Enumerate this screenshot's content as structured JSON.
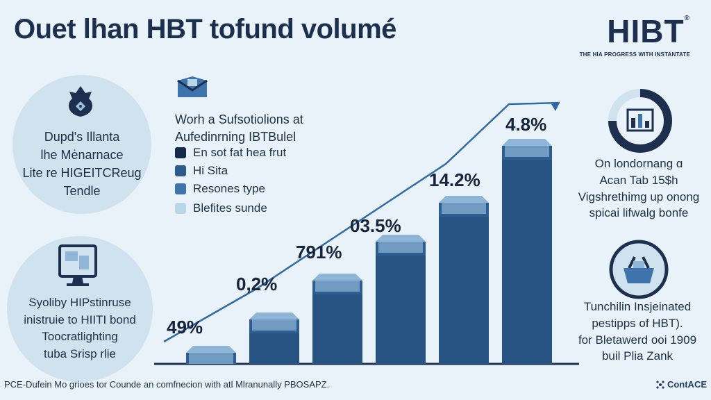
{
  "header": {
    "title": "Ouet lhan HBT tofund volumé",
    "brand_logo": "HIBT",
    "brand_mark": "®",
    "brand_tagline": "THE HIA PROGRESS WITH INSTANTATE"
  },
  "left_panel": {
    "top_circle": {
      "icon": "gem-icon",
      "lines": [
        "Dupd's Illanta",
        "lhe Mėnarnace",
        "Lite re HIGEITCReug",
        "Tendle"
      ]
    },
    "bottom_circle": {
      "icon": "monitor-icon",
      "lines": [
        "Syoliby HIPstinruse",
        "inistruie to HIITI bond",
        "Toocratlighting",
        "tuba Srisp rlie"
      ]
    }
  },
  "legend": {
    "icon": "envelope-icon",
    "heading_lines": [
      "Worh a Sufsotiolions at",
      "Aufedinrning IBTBulel"
    ],
    "items": [
      {
        "label": "En sot fat hea frut",
        "color": "#152a4a"
      },
      {
        "label": "Hi Sita",
        "color": "#2d5b8c"
      },
      {
        "label": "Resones type",
        "color": "#3e74ab"
      },
      {
        "label": "Blefites sunde",
        "color": "#b9d5e8"
      }
    ]
  },
  "chart_data": {
    "type": "bar",
    "trend_line": true,
    "data_labels": [
      "49%",
      "0,2%",
      "791%",
      "03.5%",
      "14.2%",
      "4.8%"
    ],
    "values": [
      1,
      2,
      3,
      4,
      5,
      6
    ],
    "colors": {
      "bar_front": "#2e5d91",
      "bar_front_dark": "#234a78",
      "bar_top": "#8fb6d6",
      "trend": "#2f6aa8",
      "baseline": "#1c2f4f"
    }
  },
  "right_panel": {
    "top_circle": {
      "icon": "chart-monitor-icon",
      "lines": [
        "On londornang ɑ",
        "Acan Tab 15$h",
        "Vigshrethimg up onong",
        "spicai lifwalg bonfe"
      ]
    },
    "bottom_circle": {
      "icon": "basket-icon",
      "lines": [
        "Tunchilin Insjeinated",
        "pestipps of HBT).",
        "for Bletawerd ooi 1909",
        "buil Plia Zank"
      ]
    }
  },
  "footer": {
    "note": "PCE-Dufein Mo grioes tor Counde an comfnecion with atl Mlranunally PBOSAPZ.",
    "contact": "ContACE"
  }
}
